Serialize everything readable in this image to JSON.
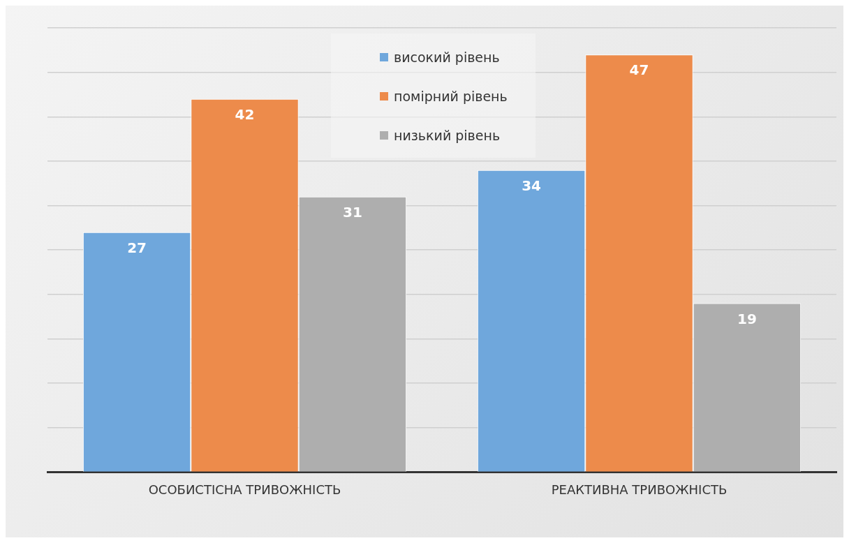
{
  "chart_data": {
    "type": "bar",
    "categories": [
      "ОСОБИСТІСНА ТРИВОЖНІСТЬ",
      "РЕАКТИВНА ТРИВОЖНІСТЬ"
    ],
    "series": [
      {
        "name": "високий рівень",
        "color": "#6fa7dc",
        "values": [
          27,
          34
        ]
      },
      {
        "name": "помірний рівень",
        "color": "#ed8b4b",
        "values": [
          42,
          47
        ]
      },
      {
        "name": "низький рівень",
        "color": "#aeaeae",
        "values": [
          31,
          19
        ]
      }
    ],
    "ylim": [
      0,
      50
    ],
    "yticks": [
      {
        "value": 0,
        "label": null
      },
      {
        "value": 5,
        "label": null
      },
      {
        "value": 10,
        "label": null
      },
      {
        "value": 15,
        "label": null
      },
      {
        "value": 20,
        "label": null
      },
      {
        "value": 25,
        "label": null
      },
      {
        "value": 30,
        "label": null
      },
      {
        "value": 35,
        "label": null
      },
      {
        "value": 40,
        "label": null
      },
      {
        "value": 45,
        "label": null
      },
      {
        "value": 50,
        "label": null
      }
    ],
    "tick_labels": "x",
    "grid": "y",
    "legend": "top",
    "data_labels": true
  }
}
